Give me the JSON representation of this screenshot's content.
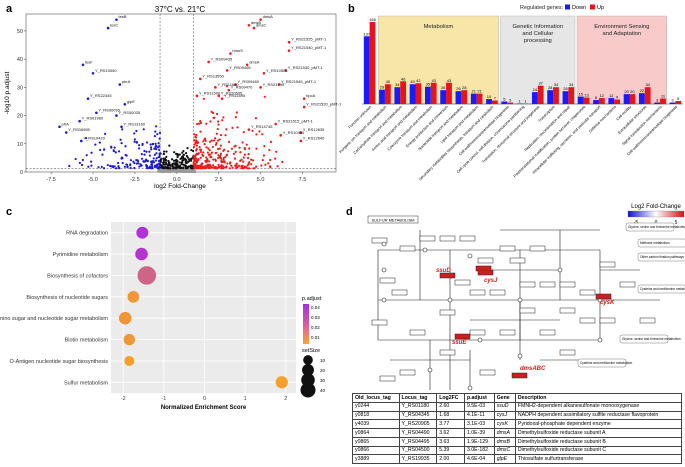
{
  "panels": {
    "a": "a",
    "b": "b",
    "c": "c",
    "d": "d"
  },
  "volcano": {
    "title": "37°C vs. 21°C",
    "xlabel": "log2 Fold-Change",
    "ylabel": "-log10 p.adjust",
    "xticks": [
      "-7.5",
      "-5.0",
      "-2.5",
      "0.0",
      "2.5",
      "5.0",
      "7.5"
    ],
    "yticks": [
      "0",
      "10",
      "20",
      "30",
      "40",
      "50"
    ],
    "labels_up": [
      "dmsB",
      "dmsA",
      "dmsC",
      "Y_RS21525_pMT-1",
      "Y_RS21540_pMT-1",
      "hmuS",
      "Y_RS09435",
      "dmsA",
      "Y_RS09465",
      "Y_RS21530_pMT-1",
      "Y_RS10505",
      "Y_RS13550",
      "Y_RS21545_pMT-1",
      "Y_RS09460",
      "Y_RS11680",
      "Y_RS21795",
      "Y_RS09470",
      "Y_RS20505",
      "Y_RS11500",
      "Y_RS11695",
      "hpcA",
      "Y_RS21520_pMT-1",
      "Y_RS21515_pMT-1",
      "Y_RS14745",
      "Y_RS12635",
      "Y_RS10480",
      "Y_RS12640"
    ],
    "labels_down": [
      "tesB",
      "tesC",
      "tesF",
      "Y_RS10050",
      "phrA",
      "Y_RS22345",
      "glpE",
      "Y_RS00095",
      "Y_RS00035",
      "Y_RS01960",
      "pfrA",
      "Y_RS13160",
      "Y_RS06955",
      "Y_RS19420"
    ]
  },
  "bar_chart": {
    "legend_title": "Regulated genes:",
    "legend_down": "Down",
    "legend_up": "Up",
    "colors": {
      "down": "#1a1aff",
      "up": "#e8141c",
      "metab": "#f8e6a8",
      "genetic": "#e6e6e6",
      "env": "#f8caca"
    },
    "groups": [
      {
        "label": "Metabolism"
      },
      {
        "label": "Genetic Information and Cellular processing"
      },
      {
        "label": "Environment Sensing and Adaptation"
      }
    ],
    "categories": [
      "Function unknown",
      "Inorganic ion transport and metabolism",
      "Carbohydrate transport and metabolism",
      "Amino acid transport and metabolism",
      "Coenzyme transport and metabolism",
      "Energy production and conversion",
      "Nucleotide transport and metabolism",
      "Lipid transport and metabolism",
      "Secondary metabolites biosynthesis, transport and catabolism",
      "Cell wall/membrane/envelope biogenesis",
      "Cell cycle control, cell division, chromosome partitioning",
      "Translation, ribosomal structure and biogenesis",
      "Transcription",
      "Replication, recombination and repair",
      "Posttranslational modification, protein turnover, chaperones",
      "Intracellular trafficking, secretion, and vesicular transport",
      "Defense mechanisms",
      "Cell motility",
      "Extracellular structures",
      "Signal transduction mechanisms",
      "Cell wall/membrane/envelope biogenesis"
    ],
    "down": [
      137,
      29,
      34,
      40,
      35,
      28,
      26,
      21,
      10,
      5,
      1,
      24,
      28,
      26,
      15,
      8,
      12,
      20,
      22,
      3,
      3
    ],
    "up": [
      166,
      40,
      46,
      42,
      43,
      43,
      28,
      21,
      7,
      3,
      1,
      37,
      34,
      34,
      13,
      12,
      9,
      20,
      34,
      11,
      6
    ],
    "chart_data": {
      "type": "bar"
    }
  },
  "dotplot": {
    "xlabel": "Normalized Enrichment Score",
    "xticks": [
      "-2",
      "-1",
      "0",
      "1",
      "2"
    ],
    "legend_padj_title": "p.adjust",
    "legend_padj_ticks": [
      "0.04",
      "0.03",
      "0.02",
      "0.01"
    ],
    "legend_size_title": "setSize",
    "legend_size_ticks": [
      "10",
      "20",
      "30",
      "40"
    ],
    "terms": [
      {
        "name": "RNA degradation",
        "nes": -1.53,
        "padj": 0.042,
        "size": 13
      },
      {
        "name": "Pyrimidine metabolism",
        "nes": -1.55,
        "padj": 0.04,
        "size": 15
      },
      {
        "name": "Biosynthesis of cofactors",
        "nes": -1.42,
        "padj": 0.025,
        "size": 45
      },
      {
        "name": "Biosynthesis of nucleotide sugars",
        "nes": -1.75,
        "padj": 0.008,
        "size": 12
      },
      {
        "name": "Amino sugar and nucleotide sugar metabolism",
        "nes": -1.95,
        "padj": 0.008,
        "size": 15
      },
      {
        "name": "Biotin metabolism",
        "nes": -1.85,
        "padj": 0.008,
        "size": 11
      },
      {
        "name": "O-Antigen nucleotide sugar biosynthesis",
        "nes": -1.85,
        "padj": 0.005,
        "size": 7
      },
      {
        "name": "Sulfur metabolism",
        "nes": 1.9,
        "padj": 0.005,
        "size": 14
      }
    ]
  },
  "pathway": {
    "title": "SULFUR METABOLISM",
    "legend_title": "Log2 Fold-Change",
    "legend_ticks": [
      "-5",
      "0",
      "5"
    ],
    "genes": {
      "ssuD": "ssuD",
      "cysJ": "cysJ",
      "glpE": "glpE",
      "cysK": "cysK",
      "ssuE": "ssuE",
      "dmsABC": "dmsABC"
    },
    "notes": [
      "Glycine, serine and threonine metabolism",
      "Methane metabolism",
      "Other carbon fixation pathways",
      "Cysteine and methionine metabolism",
      "Glycine, serine and threonine metabolism",
      "Cysteine and methionine metabolism"
    ]
  },
  "gene_table": {
    "headers": [
      "Old_locus_tag",
      "Locus_tag",
      "Log2FC",
      "p.adjust",
      "Gene",
      "Description"
    ],
    "rows": [
      [
        "y0244",
        "Y_RS01180",
        "2.60",
        "9.5E-03",
        "ssuD",
        "FMNH2-dependent alkanesulfonate monooxygenase"
      ],
      [
        "y0818",
        "Y_RS04345",
        "1.68",
        "4.1E-11",
        "cysJ",
        "NADPH dependent assimilatory sulfite reductase flavoprotein"
      ],
      [
        "y4039",
        "Y_RS20905",
        "3.77",
        "3.1E-03",
        "cysK",
        "Pyridoxal-phosphate dependent enzyme"
      ],
      [
        "y0864",
        "Y_RS04490",
        "3.62",
        "1.0E-39",
        "dmsA",
        "Dimethylsulfoxide reductase subunit A"
      ],
      [
        "y0865",
        "Y_RS04495",
        "3.63",
        "1.9E-129",
        "dmsB",
        "Dimethylsulfoxide reductase subunit B"
      ],
      [
        "y0866",
        "Y_RS04500",
        "5.39",
        "3.0E-182",
        "dmsC",
        "Dimethylsulfoxide reductase subunit C"
      ],
      [
        "y3889",
        "Y_RS19935",
        "2.00",
        "4.6E-04",
        "glpE",
        "Thiosulfate sulfurtransferase"
      ]
    ]
  }
}
